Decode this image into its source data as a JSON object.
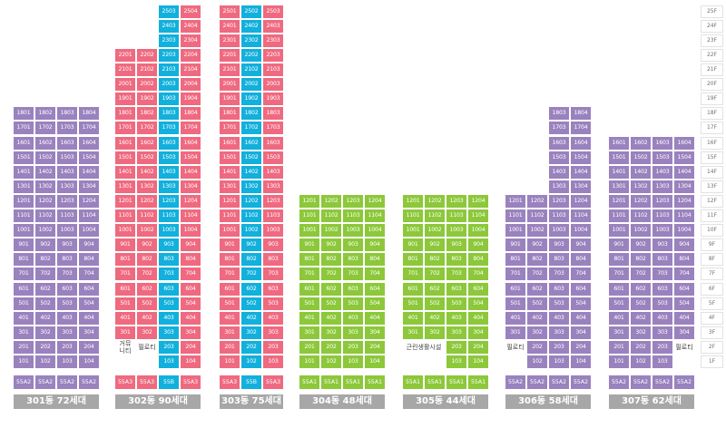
{
  "colors": {
    "purple": "#9a82be",
    "pink": "#ef6a80",
    "cyan": "#12b0dc",
    "green": "#8cc83a",
    "title_bg": "#a7a7a7"
  },
  "floor_labels": [
    "25F",
    "24F",
    "23F",
    "22F",
    "21F",
    "20F",
    "19F",
    "18F",
    "17F",
    "16F",
    "15F",
    "14F",
    "13F",
    "12F",
    "11F",
    "10F",
    "9F",
    "8F",
    "7F",
    "6F",
    "5F",
    "4F",
    "3F",
    "2F",
    "1F"
  ],
  "buildings": [
    {
      "title": "301동 72세대",
      "top_floor": 18,
      "units": [
        {
          "suffix": "01",
          "color": "purple",
          "floors": [
            1,
            18
          ]
        },
        {
          "suffix": "02",
          "color": "purple",
          "floors": [
            1,
            18
          ]
        },
        {
          "suffix": "03",
          "color": "purple",
          "floors": [
            1,
            18
          ]
        },
        {
          "suffix": "04",
          "color": "purple",
          "floors": [
            1,
            18
          ]
        }
      ],
      "types": [
        {
          "label": "55A2",
          "color": "purple"
        },
        {
          "label": "55A2",
          "color": "purple"
        },
        {
          "label": "55A2",
          "color": "purple"
        },
        {
          "label": "55A2",
          "color": "purple"
        }
      ],
      "notes": []
    },
    {
      "title": "302동 90세대",
      "top_floor": 25,
      "units": [
        {
          "suffix": "01",
          "color": "pink",
          "floors": [
            3,
            22
          ]
        },
        {
          "suffix": "02",
          "color": "pink",
          "floors": [
            3,
            22
          ]
        },
        {
          "suffix": "03",
          "color": "cyan",
          "floors": [
            1,
            25
          ]
        },
        {
          "suffix": "04",
          "color": "pink",
          "floors": [
            1,
            25
          ]
        }
      ],
      "types": [
        {
          "label": "55A3",
          "color": "pink"
        },
        {
          "label": "55A3",
          "color": "pink"
        },
        {
          "label": "55B",
          "color": "cyan"
        },
        {
          "label": "55A3",
          "color": "pink"
        }
      ],
      "notes": [
        {
          "text": "거뮤\n니티",
          "col": 0,
          "floor": 2
        },
        {
          "text": "필로티",
          "col": 1,
          "floor": 2
        }
      ]
    },
    {
      "title": "303동 75세대",
      "top_floor": 25,
      "units": [
        {
          "suffix": "01",
          "color": "pink",
          "floors": [
            1,
            25
          ]
        },
        {
          "suffix": "02",
          "color": "cyan",
          "floors": [
            1,
            25
          ]
        },
        {
          "suffix": "03",
          "color": "pink",
          "floors": [
            1,
            25
          ]
        }
      ],
      "types": [
        {
          "label": "55A3",
          "color": "pink"
        },
        {
          "label": "55B",
          "color": "cyan"
        },
        {
          "label": "55A3",
          "color": "pink"
        }
      ],
      "notes": []
    },
    {
      "title": "304동 48세대",
      "top_floor": 12,
      "units": [
        {
          "suffix": "01",
          "color": "green",
          "floors": [
            1,
            12
          ]
        },
        {
          "suffix": "02",
          "color": "green",
          "floors": [
            1,
            12
          ]
        },
        {
          "suffix": "03",
          "color": "green",
          "floors": [
            1,
            12
          ]
        },
        {
          "suffix": "04",
          "color": "green",
          "floors": [
            1,
            12
          ]
        }
      ],
      "types": [
        {
          "label": "55A1",
          "color": "green"
        },
        {
          "label": "55A1",
          "color": "green"
        },
        {
          "label": "55A1",
          "color": "green"
        },
        {
          "label": "55A1",
          "color": "green"
        }
      ],
      "notes": []
    },
    {
      "title": "305동 44세대",
      "top_floor": 12,
      "units": [
        {
          "suffix": "01",
          "color": "green",
          "floors": [
            3,
            12
          ]
        },
        {
          "suffix": "02",
          "color": "green",
          "floors": [
            3,
            12
          ]
        },
        {
          "suffix": "03",
          "color": "green",
          "floors": [
            1,
            12
          ]
        },
        {
          "suffix": "04",
          "color": "green",
          "floors": [
            1,
            12
          ]
        }
      ],
      "types": [
        {
          "label": "55A1",
          "color": "green"
        },
        {
          "label": "55A1",
          "color": "green"
        },
        {
          "label": "55A1",
          "color": "green"
        },
        {
          "label": "55A1",
          "color": "green"
        }
      ],
      "notes": [
        {
          "text": "근린생활시설",
          "col": 0,
          "floor": 2,
          "span": 2
        }
      ]
    },
    {
      "title": "306동 58세대",
      "top_floor": 18,
      "units": [
        {
          "suffix": "01",
          "color": "purple",
          "floors": [
            3,
            12
          ]
        },
        {
          "suffix": "02",
          "color": "purple",
          "floors": [
            1,
            12
          ]
        },
        {
          "suffix": "03",
          "color": "purple",
          "floors": [
            1,
            18
          ]
        },
        {
          "suffix": "04",
          "color": "purple",
          "floors": [
            1,
            18
          ]
        }
      ],
      "types": [
        {
          "label": "55A2",
          "color": "purple"
        },
        {
          "label": "55A2",
          "color": "purple"
        },
        {
          "label": "55A2",
          "color": "purple"
        },
        {
          "label": "55A2",
          "color": "purple"
        }
      ],
      "notes": [
        {
          "text": "필로티",
          "col": 0,
          "floor": 2
        }
      ]
    },
    {
      "title": "307동 62세대",
      "top_floor": 16,
      "units": [
        {
          "suffix": "01",
          "color": "purple",
          "floors": [
            1,
            16
          ]
        },
        {
          "suffix": "02",
          "color": "purple",
          "floors": [
            1,
            16
          ]
        },
        {
          "suffix": "03",
          "color": "purple",
          "floors": [
            1,
            16
          ]
        },
        {
          "suffix": "04",
          "color": "purple",
          "floors": [
            3,
            16
          ]
        }
      ],
      "types": [
        {
          "label": "55A2",
          "color": "purple"
        },
        {
          "label": "55A2",
          "color": "purple"
        },
        {
          "label": "55A2",
          "color": "purple"
        },
        {
          "label": "55A2",
          "color": "purple"
        }
      ],
      "notes": [
        {
          "text": "필로티",
          "col": 3,
          "floor": 2
        }
      ]
    }
  ]
}
